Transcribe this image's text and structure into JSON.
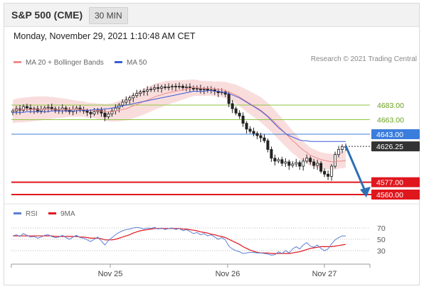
{
  "header": {
    "title": "S&P 500 (CME)",
    "timeframe": "30 MIN"
  },
  "datetime": "Monday, November 29, 2021 1:10:48 AM CET",
  "legend": {
    "ma20_bb": "MA 20 + Bollinger Bands",
    "ma50": "MA 50",
    "credit": "Research © 2021 Trading Central"
  },
  "rsi_legend": {
    "rsi": "RSI",
    "ma9": "9MA"
  },
  "colors": {
    "resistance": "#8dc63f",
    "support": "#e0161d",
    "current_level": "#3b7ddd",
    "last_price": "#333333",
    "bollinger": "#f8d7d7",
    "ma20": "#f08a8a",
    "ma50": "#3b5bdb",
    "arrow": "#2f6fb5",
    "rsi": "#5b7fd6",
    "rsi_ma": "#e0161d"
  },
  "chart_data": [
    {
      "type": "candlestick",
      "x_ticks": [
        "Nov 25",
        "Nov 26",
        "Nov 27"
      ],
      "levels": [
        {
          "label": "4683.00",
          "value": 4683,
          "kind": "resistance"
        },
        {
          "label": "4663.00",
          "value": 4663,
          "kind": "resistance"
        },
        {
          "label": "4643.00",
          "value": 4643,
          "kind": "current"
        },
        {
          "label": "4626.25",
          "value": 4626.25,
          "kind": "last"
        },
        {
          "label": "4577.00",
          "value": 4577,
          "kind": "support"
        },
        {
          "label": "4560.00",
          "value": 4560,
          "kind": "support"
        }
      ],
      "close": [
        4675,
        4678,
        4676,
        4681,
        4679,
        4677,
        4678,
        4675,
        4677,
        4679,
        4680,
        4678,
        4676,
        4677,
        4679,
        4676,
        4674,
        4677,
        4679,
        4676,
        4675,
        4673,
        4671,
        4674,
        4676,
        4672,
        4667,
        4671,
        4675,
        4679,
        4683,
        4687,
        4690,
        4693,
        4696,
        4699,
        4701,
        4702,
        4704,
        4705,
        4707,
        4706,
        4708,
        4707,
        4708,
        4709,
        4708,
        4709,
        4707,
        4708,
        4707,
        4705,
        4706,
        4704,
        4705,
        4703,
        4704,
        4702,
        4700,
        4701,
        4698,
        4685,
        4678,
        4672,
        4668,
        4658,
        4650,
        4647,
        4644,
        4641,
        4638,
        4634,
        4622,
        4610,
        4606,
        4608,
        4603,
        4605,
        4600,
        4602,
        4604,
        4599,
        4606,
        4610,
        4605,
        4600,
        4603,
        4592,
        4588,
        4585,
        4599,
        4615,
        4622,
        4626,
        4626
      ],
      "ma20": [
        4676,
        4677,
        4677,
        4677,
        4677,
        4677,
        4677,
        4677,
        4677,
        4677,
        4677,
        4677,
        4677,
        4677,
        4677,
        4677,
        4677,
        4677,
        4677,
        4677,
        4677,
        4676,
        4676,
        4676,
        4675,
        4675,
        4674,
        4674,
        4674,
        4675,
        4676,
        4677,
        4678,
        4680,
        4682,
        4684,
        4686,
        4688,
        4690,
        4692,
        4694,
        4696,
        4697,
        4699,
        4700,
        4701,
        4702,
        4703,
        4704,
        4705,
        4706,
        4707,
        4707,
        4706,
        4706,
        4706,
        4706,
        4705,
        4705,
        4704,
        4703,
        4701,
        4699,
        4697,
        4694,
        4691,
        4688,
        4685,
        4682,
        4679,
        4676,
        4672,
        4668,
        4664,
        4659,
        4654,
        4649,
        4644,
        4639,
        4634,
        4630,
        4625,
        4621,
        4618,
        4614,
        4612,
        4610,
        4608,
        4607,
        4606,
        4605,
        4605,
        4606,
        4606,
        4607
      ],
      "ma50": [
        4673,
        4673,
        4673,
        4673,
        4674,
        4674,
        4674,
        4674,
        4674,
        4674,
        4674,
        4675,
        4675,
        4675,
        4675,
        4675,
        4675,
        4675,
        4675,
        4676,
        4676,
        4676,
        4676,
        4677,
        4677,
        4677,
        4678,
        4678,
        4679,
        4680,
        4681,
        4682,
        4683,
        4684,
        4685,
        4686,
        4687,
        4688,
        4689,
        4690,
        4691,
        4692,
        4693,
        4694,
        4695,
        4696,
        4697,
        4698,
        4699,
        4700,
        4701,
        4702,
        4702,
        4702,
        4702,
        4703,
        4703,
        4702,
        4702,
        4701,
        4700,
        4699,
        4697,
        4695,
        4693,
        4690,
        4687,
        4684,
        4681,
        4678,
        4675,
        4671,
        4667,
        4662,
        4657,
        4652,
        4648,
        4644,
        4641,
        4639,
        4637,
        4635,
        4634,
        4634,
        4633,
        4633,
        4633,
        4633,
        4633,
        4633,
        4633,
        4633,
        4633,
        4633,
        4633
      ]
    },
    {
      "type": "line",
      "title": "RSI",
      "y_ticks": [
        70,
        50,
        30
      ],
      "rsi": [
        56,
        58,
        55,
        60,
        57,
        54,
        55,
        52,
        54,
        57,
        58,
        55,
        53,
        54,
        57,
        53,
        50,
        54,
        57,
        53,
        52,
        49,
        46,
        50,
        54,
        47,
        40,
        48,
        53,
        58,
        62,
        65,
        67,
        68,
        70,
        71,
        70,
        68,
        70,
        69,
        71,
        68,
        70,
        67,
        69,
        70,
        67,
        69,
        65,
        67,
        64,
        60,
        62,
        58,
        60,
        56,
        58,
        54,
        50,
        53,
        49,
        38,
        33,
        30,
        28,
        25,
        26,
        27,
        27,
        26,
        26,
        25,
        24,
        22,
        23,
        28,
        25,
        30,
        26,
        33,
        37,
        33,
        40,
        44,
        38,
        36,
        40,
        34,
        30,
        33,
        42,
        49,
        53,
        56,
        56
      ],
      "ma9": [
        56,
        56,
        56,
        56,
        56,
        56,
        56,
        56,
        56,
        56,
        56,
        56,
        55,
        55,
        55,
        55,
        55,
        55,
        55,
        54,
        54,
        53,
        52,
        52,
        52,
        51,
        49,
        49,
        49,
        50,
        52,
        54,
        56,
        58,
        61,
        63,
        65,
        66,
        67,
        68,
        69,
        69,
        69,
        69,
        69,
        69,
        69,
        69,
        68,
        68,
        67,
        66,
        65,
        63,
        62,
        61,
        59,
        58,
        56,
        55,
        53,
        50,
        47,
        44,
        41,
        37,
        34,
        31,
        29,
        27,
        26,
        26,
        26,
        25,
        25,
        25,
        25,
        25,
        25,
        26,
        27,
        28,
        30,
        32,
        34,
        35,
        36,
        37,
        37,
        37,
        37,
        38,
        39,
        40,
        41
      ]
    }
  ]
}
